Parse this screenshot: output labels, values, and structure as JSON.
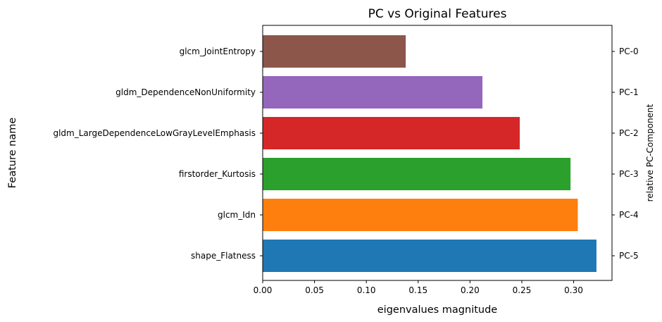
{
  "chart_data": {
    "type": "bar",
    "orientation": "horizontal",
    "title": "PC vs Original Features",
    "xlabel": "eigenvalues magnitude",
    "ylabel": "Feature name",
    "y2label": "relative PC-Component",
    "xlim": [
      0.0,
      0.337
    ],
    "xticks": [
      "0.00",
      "0.05",
      "0.10",
      "0.15",
      "0.20",
      "0.25",
      "0.30"
    ],
    "xtick_values": [
      0.0,
      0.05,
      0.1,
      0.15,
      0.2,
      0.25,
      0.3
    ],
    "grid": false,
    "bars": [
      {
        "feature": "shape_Flatness",
        "component": "PC-5",
        "value": 0.322,
        "color": "#1f77b4"
      },
      {
        "feature": "glcm_Idn",
        "component": "PC-4",
        "value": 0.304,
        "color": "#ff7f0e"
      },
      {
        "feature": "firstorder_Kurtosis",
        "component": "PC-3",
        "value": 0.297,
        "color": "#2ca02c"
      },
      {
        "feature": "gldm_LargeDependenceLowGrayLevelEmphasis",
        "component": "PC-2",
        "value": 0.248,
        "color": "#d62728"
      },
      {
        "feature": "gldm_DependenceNonUniformity",
        "component": "PC-1",
        "value": 0.212,
        "color": "#9467bd"
      },
      {
        "feature": "glcm_JointEntropy",
        "component": "PC-0",
        "value": 0.138,
        "color": "#8c564b"
      }
    ]
  }
}
